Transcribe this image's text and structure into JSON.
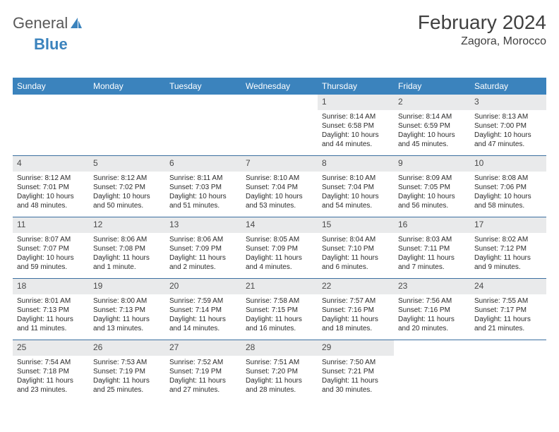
{
  "logo": {
    "text1": "General",
    "text2": "Blue"
  },
  "title": "February 2024",
  "location": "Zagora, Morocco",
  "colors": {
    "header_bg": "#3b83bd",
    "daynum_bg": "#e9eaeb",
    "week_border": "#3b6fa0",
    "text": "#2b2b2b"
  },
  "dayHeaders": [
    "Sunday",
    "Monday",
    "Tuesday",
    "Wednesday",
    "Thursday",
    "Friday",
    "Saturday"
  ],
  "weeks": [
    [
      {
        "n": "",
        "sr": "",
        "ss": "",
        "dl": ""
      },
      {
        "n": "",
        "sr": "",
        "ss": "",
        "dl": ""
      },
      {
        "n": "",
        "sr": "",
        "ss": "",
        "dl": ""
      },
      {
        "n": "",
        "sr": "",
        "ss": "",
        "dl": ""
      },
      {
        "n": "1",
        "sr": "Sunrise: 8:14 AM",
        "ss": "Sunset: 6:58 PM",
        "dl": "Daylight: 10 hours and 44 minutes."
      },
      {
        "n": "2",
        "sr": "Sunrise: 8:14 AM",
        "ss": "Sunset: 6:59 PM",
        "dl": "Daylight: 10 hours and 45 minutes."
      },
      {
        "n": "3",
        "sr": "Sunrise: 8:13 AM",
        "ss": "Sunset: 7:00 PM",
        "dl": "Daylight: 10 hours and 47 minutes."
      }
    ],
    [
      {
        "n": "4",
        "sr": "Sunrise: 8:12 AM",
        "ss": "Sunset: 7:01 PM",
        "dl": "Daylight: 10 hours and 48 minutes."
      },
      {
        "n": "5",
        "sr": "Sunrise: 8:12 AM",
        "ss": "Sunset: 7:02 PM",
        "dl": "Daylight: 10 hours and 50 minutes."
      },
      {
        "n": "6",
        "sr": "Sunrise: 8:11 AM",
        "ss": "Sunset: 7:03 PM",
        "dl": "Daylight: 10 hours and 51 minutes."
      },
      {
        "n": "7",
        "sr": "Sunrise: 8:10 AM",
        "ss": "Sunset: 7:04 PM",
        "dl": "Daylight: 10 hours and 53 minutes."
      },
      {
        "n": "8",
        "sr": "Sunrise: 8:10 AM",
        "ss": "Sunset: 7:04 PM",
        "dl": "Daylight: 10 hours and 54 minutes."
      },
      {
        "n": "9",
        "sr": "Sunrise: 8:09 AM",
        "ss": "Sunset: 7:05 PM",
        "dl": "Daylight: 10 hours and 56 minutes."
      },
      {
        "n": "10",
        "sr": "Sunrise: 8:08 AM",
        "ss": "Sunset: 7:06 PM",
        "dl": "Daylight: 10 hours and 58 minutes."
      }
    ],
    [
      {
        "n": "11",
        "sr": "Sunrise: 8:07 AM",
        "ss": "Sunset: 7:07 PM",
        "dl": "Daylight: 10 hours and 59 minutes."
      },
      {
        "n": "12",
        "sr": "Sunrise: 8:06 AM",
        "ss": "Sunset: 7:08 PM",
        "dl": "Daylight: 11 hours and 1 minute."
      },
      {
        "n": "13",
        "sr": "Sunrise: 8:06 AM",
        "ss": "Sunset: 7:09 PM",
        "dl": "Daylight: 11 hours and 2 minutes."
      },
      {
        "n": "14",
        "sr": "Sunrise: 8:05 AM",
        "ss": "Sunset: 7:09 PM",
        "dl": "Daylight: 11 hours and 4 minutes."
      },
      {
        "n": "15",
        "sr": "Sunrise: 8:04 AM",
        "ss": "Sunset: 7:10 PM",
        "dl": "Daylight: 11 hours and 6 minutes."
      },
      {
        "n": "16",
        "sr": "Sunrise: 8:03 AM",
        "ss": "Sunset: 7:11 PM",
        "dl": "Daylight: 11 hours and 7 minutes."
      },
      {
        "n": "17",
        "sr": "Sunrise: 8:02 AM",
        "ss": "Sunset: 7:12 PM",
        "dl": "Daylight: 11 hours and 9 minutes."
      }
    ],
    [
      {
        "n": "18",
        "sr": "Sunrise: 8:01 AM",
        "ss": "Sunset: 7:13 PM",
        "dl": "Daylight: 11 hours and 11 minutes."
      },
      {
        "n": "19",
        "sr": "Sunrise: 8:00 AM",
        "ss": "Sunset: 7:13 PM",
        "dl": "Daylight: 11 hours and 13 minutes."
      },
      {
        "n": "20",
        "sr": "Sunrise: 7:59 AM",
        "ss": "Sunset: 7:14 PM",
        "dl": "Daylight: 11 hours and 14 minutes."
      },
      {
        "n": "21",
        "sr": "Sunrise: 7:58 AM",
        "ss": "Sunset: 7:15 PM",
        "dl": "Daylight: 11 hours and 16 minutes."
      },
      {
        "n": "22",
        "sr": "Sunrise: 7:57 AM",
        "ss": "Sunset: 7:16 PM",
        "dl": "Daylight: 11 hours and 18 minutes."
      },
      {
        "n": "23",
        "sr": "Sunrise: 7:56 AM",
        "ss": "Sunset: 7:16 PM",
        "dl": "Daylight: 11 hours and 20 minutes."
      },
      {
        "n": "24",
        "sr": "Sunrise: 7:55 AM",
        "ss": "Sunset: 7:17 PM",
        "dl": "Daylight: 11 hours and 21 minutes."
      }
    ],
    [
      {
        "n": "25",
        "sr": "Sunrise: 7:54 AM",
        "ss": "Sunset: 7:18 PM",
        "dl": "Daylight: 11 hours and 23 minutes."
      },
      {
        "n": "26",
        "sr": "Sunrise: 7:53 AM",
        "ss": "Sunset: 7:19 PM",
        "dl": "Daylight: 11 hours and 25 minutes."
      },
      {
        "n": "27",
        "sr": "Sunrise: 7:52 AM",
        "ss": "Sunset: 7:19 PM",
        "dl": "Daylight: 11 hours and 27 minutes."
      },
      {
        "n": "28",
        "sr": "Sunrise: 7:51 AM",
        "ss": "Sunset: 7:20 PM",
        "dl": "Daylight: 11 hours and 28 minutes."
      },
      {
        "n": "29",
        "sr": "Sunrise: 7:50 AM",
        "ss": "Sunset: 7:21 PM",
        "dl": "Daylight: 11 hours and 30 minutes."
      },
      {
        "n": "",
        "sr": "",
        "ss": "",
        "dl": ""
      },
      {
        "n": "",
        "sr": "",
        "ss": "",
        "dl": ""
      }
    ]
  ]
}
